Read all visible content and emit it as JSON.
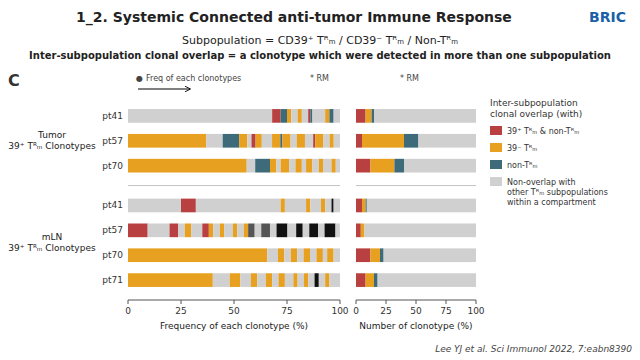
{
  "chart_data": [
    {
      "type": "bar",
      "orientation": "horizontal",
      "stacked": true,
      "grid": false,
      "title": "1_2. Systemic Connected anti-tumor Immune Response",
      "subtitle": [
        "Subpopulation = CD39⁺ Tᴿₘ / CD39⁻ Tᴿₘ / Non-Tᴿₘ",
        "Inter-subpopulation clonal overlap = a clonotype which were detected in more than one subpopulation"
      ],
      "annotations": [
        "BRIC",
        "C",
        "●",
        "Freq of each clonotypes",
        "* RM",
        "Lee YJ et al. Sci Immunol 2022, 7:eabn8390"
      ],
      "groups": [
        {
          "label": "Tumor\n39⁺ Tᴿₘ Clonotypes",
          "from": 0,
          "to": 2
        },
        {
          "label": "mLN\n39⁺ Tᴿₘ Clonotypes",
          "from": 3,
          "to": 6
        }
      ],
      "categories": [
        "pt41",
        "pt57",
        "pt70",
        "pt41",
        "pt57",
        "pt70",
        "pt71"
      ],
      "x_label": "Frequency of each clonotype (%)",
      "xlim": [
        0,
        100
      ],
      "xticks": [
        0,
        25,
        50,
        75,
        100
      ],
      "values": [
        [
          68,
          4,
          3,
          2,
          3,
          2,
          3,
          1,
          1,
          6,
          2,
          2,
          3
        ],
        [
          36.89,
          7.77,
          7.77,
          3.88,
          1.94,
          1.94,
          2.91,
          4.85,
          3.88,
          0.97,
          3.88,
          2.91,
          3.88,
          3.88,
          0.97,
          3.88,
          2.91,
          1.94,
          2.91
        ],
        [
          56,
          4,
          7,
          3,
          2,
          4,
          3,
          3,
          2,
          3,
          3,
          2,
          4,
          2,
          2
        ],
        [
          25,
          7,
          40,
          2,
          10,
          2,
          5,
          2,
          3,
          1,
          3
        ],
        [
          9.28,
          10.31,
          4.12,
          3.09,
          3.09,
          5.15,
          3.09,
          2.06,
          3.09,
          2.06,
          4.12,
          2.06,
          3.09,
          2.06,
          3.09,
          3.09,
          4.12,
          3.09,
          5.15,
          4.12,
          3.09,
          3.09,
          4.12,
          3.09,
          5.15,
          2.06
        ],
        [
          65.66,
          5.05,
          3.03,
          3.03,
          3.03,
          3.03,
          3.03,
          3.03,
          3.03,
          2.02,
          3.03,
          3.03
        ],
        [
          40,
          8,
          5,
          5,
          3,
          4,
          3,
          3,
          3,
          4,
          2,
          3,
          2,
          3,
          2,
          3,
          2,
          5
        ]
      ],
      "colors": [
        [
          "#d0d0d0",
          "#b84040",
          "#3d6b7a",
          "#E8A020",
          "#d0d0d0",
          "#E8A020",
          "#d0d0d0",
          "#b84040",
          "#3d6b7a",
          "#d0d0d0",
          "#E8A020",
          "#3d6b7a",
          "#d0d0d0"
        ],
        [
          "#E8A020",
          "#d0d0d0",
          "#3d6b7a",
          "#E8A020",
          "#d0d0d0",
          "#b84040",
          "#E8A020",
          "#d0d0d0",
          "#E8A020",
          "#3d6b7a",
          "#E8A020",
          "#d0d0d0",
          "#E8A020",
          "#d0d0d0",
          "#b84040",
          "#E8A020",
          "#d0d0d0",
          "#E8A020",
          "#d0d0d0"
        ],
        [
          "#E8A020",
          "#d0d0d0",
          "#3d6b7a",
          "#E8A020",
          "#d0d0d0",
          "#E8A020",
          "#d0d0d0",
          "#E8A020",
          "#d0d0d0",
          "#E8A020",
          "#d0d0d0",
          "#E8A020",
          "#d0d0d0",
          "#E8A020",
          "#d0d0d0"
        ],
        [
          "#d0d0d0",
          "#b84040",
          "#d0d0d0",
          "#E8A020",
          "#d0d0d0",
          "#E8A020",
          "#d0d0d0",
          "#E8A020",
          "#d0d0d0",
          "#111111",
          "#d0d0d0"
        ],
        [
          "#b84040",
          "#d0d0d0",
          "#b84040",
          "#d0d0d0",
          "#E8A020",
          "#d0d0d0",
          "#b84040",
          "#E8A020",
          "#d0d0d0",
          "#E8A020",
          "#d0d0d0",
          "#E8A020",
          "#d0d0d0",
          "#E8A020",
          "#555555",
          "#d0d0d0",
          "#555555",
          "#d0d0d0",
          "#111111",
          "#d0d0d0",
          "#111111",
          "#d0d0d0",
          "#111111",
          "#d0d0d0",
          "#111111",
          "#d0d0d0"
        ],
        [
          "#E8A020",
          "#d0d0d0",
          "#E8A020",
          "#d0d0d0",
          "#E8A020",
          "#d0d0d0",
          "#E8A020",
          "#d0d0d0",
          "#E8A020",
          "#d0d0d0",
          "#E8A020",
          "#d0d0d0"
        ],
        [
          "#E8A020",
          "#d0d0d0",
          "#E8A020",
          "#d0d0d0",
          "#E8A020",
          "#d0d0d0",
          "#E8A020",
          "#d0d0d0",
          "#E8A020",
          "#d0d0d0",
          "#E8A020",
          "#d0d0d0",
          "#E8A020",
          "#d0d0d0",
          "#111111",
          "#d0d0d0",
          "#E8A020",
          "#d0d0d0"
        ]
      ]
    },
    {
      "type": "bar",
      "orientation": "horizontal",
      "stacked": true,
      "grid": false,
      "tick_labels": "x",
      "annotations": [
        "* RM"
      ],
      "categories": [
        "pt41",
        "pt57",
        "pt70",
        "pt41",
        "pt57",
        "pt70",
        "pt71"
      ],
      "x_label": "Number of clonotype (%)",
      "xlim": [
        0,
        100
      ],
      "xticks": [
        0,
        25,
        50,
        75,
        100
      ],
      "legend": "right",
      "legend_title": "Inter-subpopulation\nclonal overlap (with)",
      "series": [
        {
          "name": "39⁺ Tᴿₘ & non-Tᴿₘ",
          "color": "#b84040",
          "values": [
            8,
            5,
            12,
            5,
            4,
            12,
            8
          ]
        },
        {
          "name": "39⁻ Tᴿₘ",
          "color": "#E8A020",
          "values": [
            5,
            35,
            20,
            3,
            3,
            8,
            7
          ]
        },
        {
          "name": "non-Tᴿₘ",
          "color": "#3d6b7a",
          "values": [
            2,
            12,
            8,
            1,
            0,
            3,
            3
          ]
        },
        {
          "name": "Non-overlap with\nother Tᴿₘ subpopulations\nwithin a compartment",
          "color": "#d0d0d0",
          "values": [
            85,
            48,
            60,
            91,
            93,
            77,
            82
          ]
        }
      ]
    }
  ]
}
